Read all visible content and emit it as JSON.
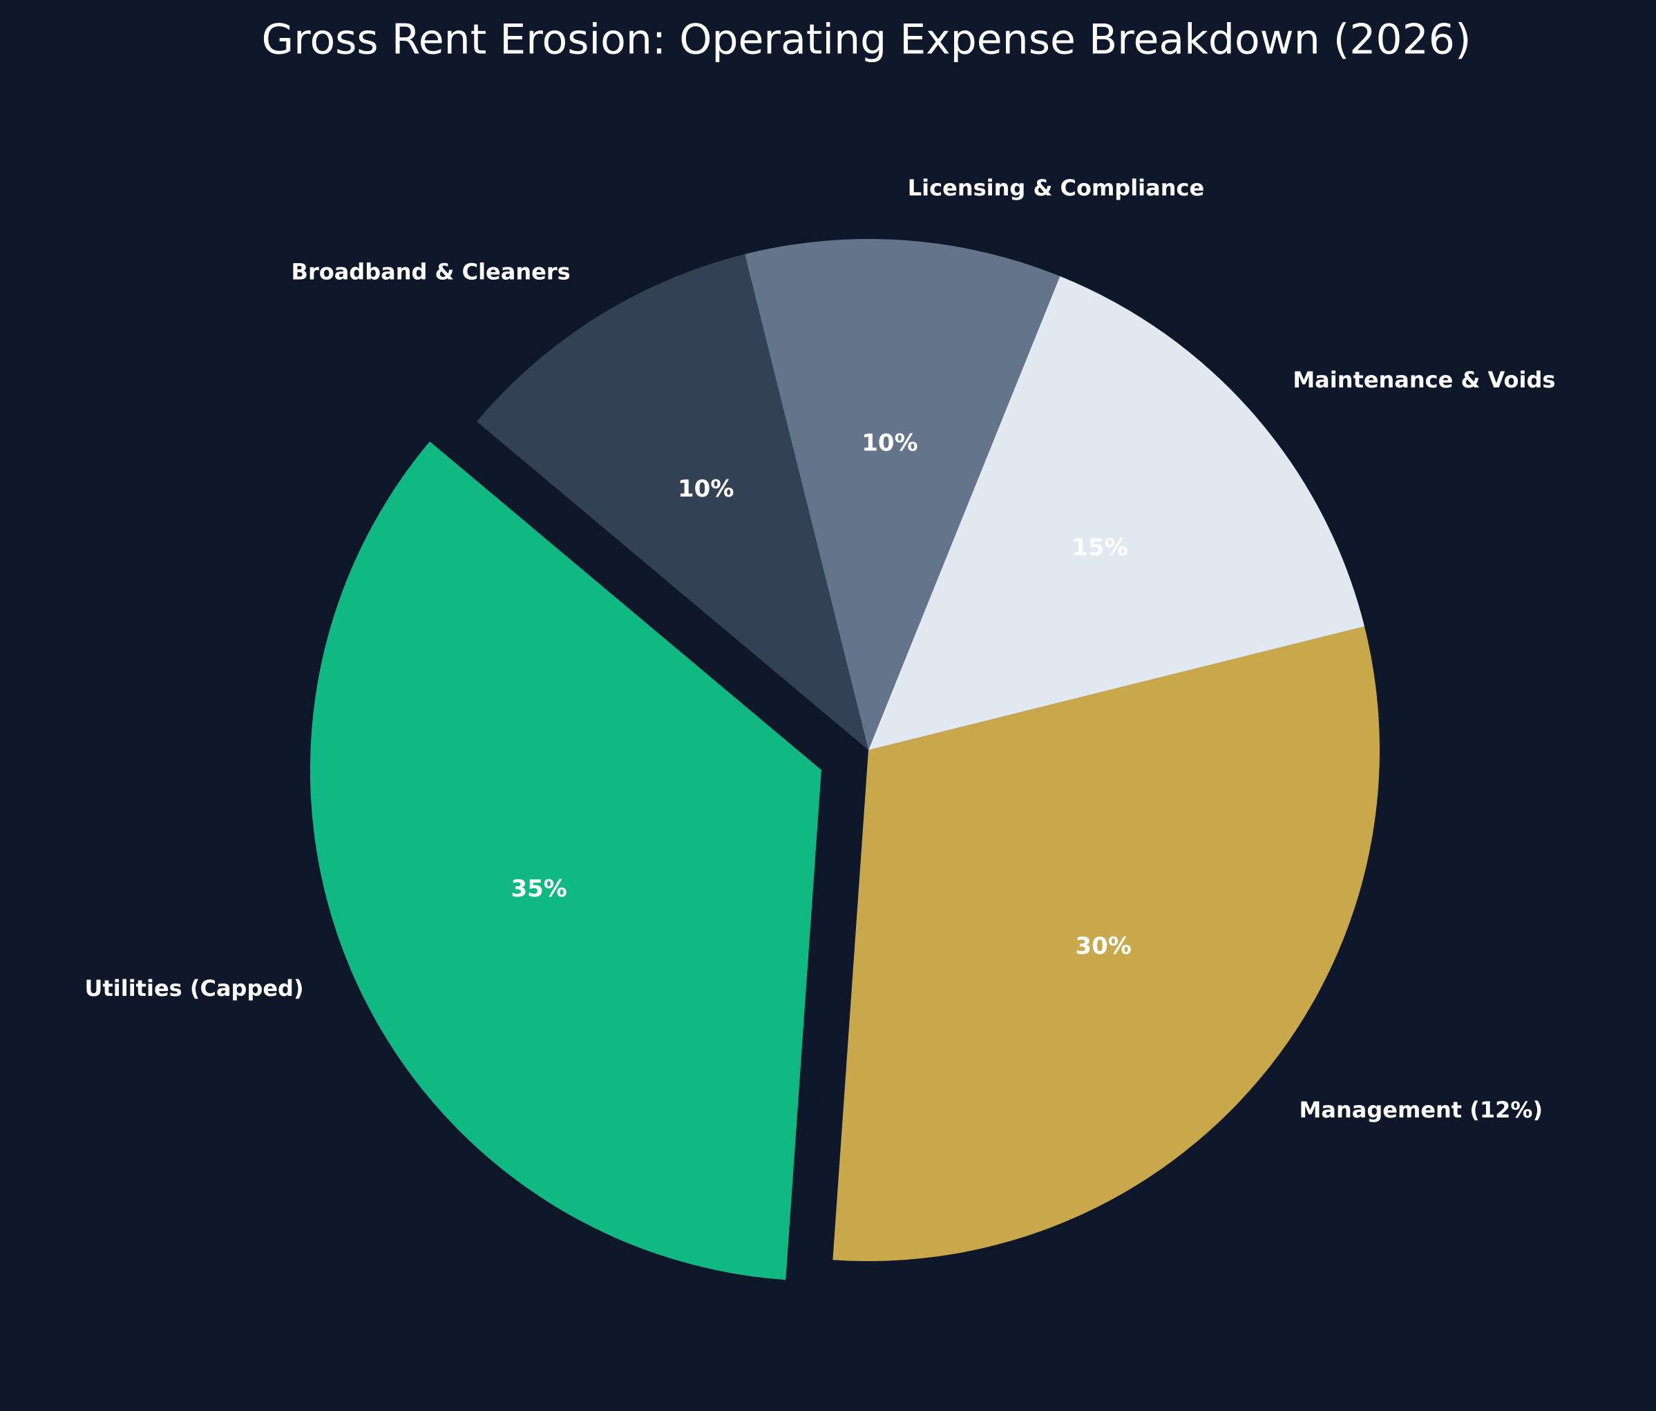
{
  "chart_data": {
    "type": "pie",
    "title": "Gross Rent Erosion: Operating Expense Breakdown (2026)",
    "categories": [
      "Utilities (Capped)",
      "Management (12%)",
      "Maintenance & Voids",
      "Licensing & Compliance",
      "Broadband & Cleaners"
    ],
    "values": [
      35,
      30,
      15,
      10,
      10
    ],
    "value_labels": [
      "35%",
      "30%",
      "15%",
      "10%",
      "10%"
    ],
    "colors": [
      "#10b981",
      "#c9a84c",
      "#e2e8f0",
      "#64748b",
      "#334155"
    ],
    "explode": [
      0.1,
      0,
      0,
      0,
      0
    ],
    "start_angle": 140
  }
}
